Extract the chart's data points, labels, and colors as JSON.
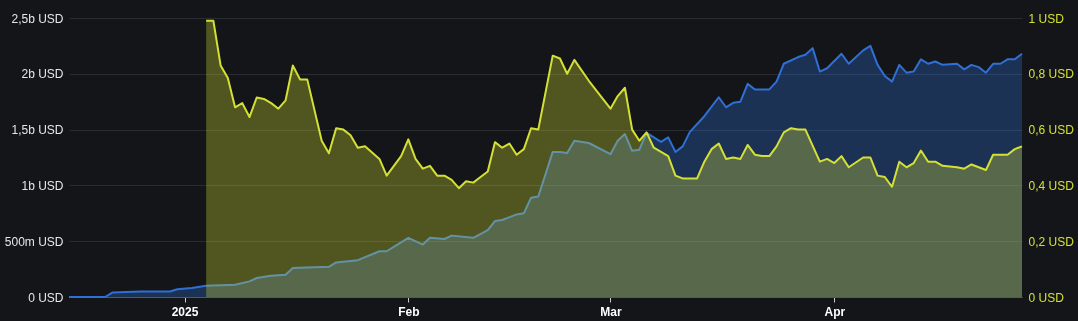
{
  "chart_data": {
    "type": "area",
    "xlim": [
      "2024-12-16",
      "2025-04-27"
    ],
    "xticks": [
      {
        "value": "2025-01-01",
        "label": "2025"
      },
      {
        "value": "2025-02-01",
        "label": "Feb"
      },
      {
        "value": "2025-03-01",
        "label": "Mar"
      },
      {
        "value": "2025-04-01",
        "label": "Apr"
      }
    ],
    "ylim": [
      0,
      2500000000
    ],
    "yticks": [
      {
        "value": 0,
        "label": "0 USD"
      },
      {
        "value": 500000000,
        "label": "500m USD"
      },
      {
        "value": 1000000000,
        "label": "1b USD"
      },
      {
        "value": 1500000000,
        "label": "1,5b USD"
      },
      {
        "value": 2000000000,
        "label": "2b USD"
      },
      {
        "value": 2500000000,
        "label": "2,5b USD"
      }
    ],
    "y2lim": [
      0,
      1
    ],
    "y2ticks": [
      {
        "value": 0,
        "label": "0 USD"
      },
      {
        "value": 0.2,
        "label": "0,2 USD"
      },
      {
        "value": 0.4,
        "label": "0,4 USD"
      },
      {
        "value": 0.6,
        "label": "0,6 USD"
      },
      {
        "value": 0.8,
        "label": "0,8 USD"
      },
      {
        "value": 1,
        "label": "1 USD"
      }
    ],
    "grid": "y",
    "series": [
      {
        "color": "#2f6fd6",
        "x": [
          "2024-12-16",
          "2024-12-21",
          "2024-12-22",
          "2024-12-26",
          "2024-12-30",
          "2024-12-31",
          "2025-01-02",
          "2025-01-04",
          "2025-01-08",
          "2025-01-10",
          "2025-01-11",
          "2025-01-13",
          "2025-01-15",
          "2025-01-16",
          "2025-01-21",
          "2025-01-22",
          "2025-01-25",
          "2025-01-28",
          "2025-01-29",
          "2025-02-01",
          "2025-02-03",
          "2025-02-04",
          "2025-02-06",
          "2025-02-07",
          "2025-02-10",
          "2025-02-12",
          "2025-02-13",
          "2025-02-14",
          "2025-02-16",
          "2025-02-17",
          "2025-02-18",
          "2025-02-19",
          "2025-02-20",
          "2025-02-21",
          "2025-02-22",
          "2025-02-23",
          "2025-02-24",
          "2025-02-26",
          "2025-03-01",
          "2025-03-02",
          "2025-03-03",
          "2025-03-04",
          "2025-03-05",
          "2025-03-06",
          "2025-03-08",
          "2025-03-09",
          "2025-03-10",
          "2025-03-11",
          "2025-03-12",
          "2025-03-14",
          "2025-03-16",
          "2025-03-17",
          "2025-03-18",
          "2025-03-19",
          "2025-03-20",
          "2025-03-21",
          "2025-03-23",
          "2025-03-24",
          "2025-03-25",
          "2025-03-27",
          "2025-03-28",
          "2025-03-29",
          "2025-03-30",
          "2025-03-31",
          "2025-04-02",
          "2025-04-03",
          "2025-04-05",
          "2025-04-06",
          "2025-04-07",
          "2025-04-08",
          "2025-04-09",
          "2025-04-10",
          "2025-04-11",
          "2025-04-12",
          "2025-04-13",
          "2025-04-14",
          "2025-04-15",
          "2025-04-16",
          "2025-04-18",
          "2025-04-19",
          "2025-04-20",
          "2025-04-21",
          "2025-04-22",
          "2025-04-23",
          "2025-04-24",
          "2025-04-25",
          "2025-04-26",
          "2025-04-27"
        ],
        "values": [
          0,
          0,
          40000000,
          50000000,
          50000000,
          70000000,
          80000000,
          100000000,
          110000000,
          140000000,
          170000000,
          190000000,
          200000000,
          260000000,
          270000000,
          310000000,
          330000000,
          410000000,
          410000000,
          530000000,
          470000000,
          530000000,
          520000000,
          550000000,
          530000000,
          600000000,
          680000000,
          690000000,
          740000000,
          750000000,
          890000000,
          900000000,
          1100000000,
          1300000000,
          1300000000,
          1290000000,
          1400000000,
          1380000000,
          1280000000,
          1400000000,
          1460000000,
          1310000000,
          1320000000,
          1470000000,
          1390000000,
          1430000000,
          1300000000,
          1350000000,
          1480000000,
          1620000000,
          1790000000,
          1700000000,
          1740000000,
          1750000000,
          1910000000,
          1860000000,
          1860000000,
          1930000000,
          2090000000,
          2150000000,
          2170000000,
          2230000000,
          2020000000,
          2050000000,
          2180000000,
          2090000000,
          2210000000,
          2250000000,
          2080000000,
          1980000000,
          1930000000,
          2080000000,
          2010000000,
          2020000000,
          2130000000,
          2090000000,
          2110000000,
          2080000000,
          2090000000,
          2040000000,
          2080000000,
          2060000000,
          2010000000,
          2090000000,
          2090000000,
          2130000000,
          2130000000,
          2180000000
        ]
      },
      {
        "axis": "y2",
        "color": "#d4e035",
        "x": [
          "2025-01-04",
          "2025-01-05",
          "2025-01-06",
          "2025-01-07",
          "2025-01-08",
          "2025-01-09",
          "2025-01-10",
          "2025-01-11",
          "2025-01-12",
          "2025-01-13",
          "2025-01-14",
          "2025-01-15",
          "2025-01-16",
          "2025-01-17",
          "2025-01-18",
          "2025-01-20",
          "2025-01-21",
          "2025-01-22",
          "2025-01-23",
          "2025-01-24",
          "2025-01-25",
          "2025-01-26",
          "2025-01-28",
          "2025-01-29",
          "2025-01-31",
          "2025-02-01",
          "2025-02-02",
          "2025-02-03",
          "2025-02-04",
          "2025-02-05",
          "2025-02-06",
          "2025-02-07",
          "2025-02-08",
          "2025-02-09",
          "2025-02-10",
          "2025-02-11",
          "2025-02-12",
          "2025-02-13",
          "2025-02-14",
          "2025-02-15",
          "2025-02-16",
          "2025-02-17",
          "2025-02-18",
          "2025-02-19",
          "2025-02-21",
          "2025-02-22",
          "2025-02-23",
          "2025-02-24",
          "2025-02-26",
          "2025-03-01",
          "2025-03-02",
          "2025-03-03",
          "2025-03-04",
          "2025-03-05",
          "2025-03-06",
          "2025-03-07",
          "2025-03-09",
          "2025-03-10",
          "2025-03-11",
          "2025-03-13",
          "2025-03-14",
          "2025-03-15",
          "2025-03-16",
          "2025-03-17",
          "2025-03-18",
          "2025-03-19",
          "2025-03-20",
          "2025-03-21",
          "2025-03-22",
          "2025-03-23",
          "2025-03-24",
          "2025-03-25",
          "2025-03-26",
          "2025-03-27",
          "2025-03-28",
          "2025-03-30",
          "2025-03-31",
          "2025-04-01",
          "2025-04-02",
          "2025-04-03",
          "2025-04-05",
          "2025-04-06",
          "2025-04-07",
          "2025-04-08",
          "2025-04-09",
          "2025-04-10",
          "2025-04-11",
          "2025-04-12",
          "2025-04-13",
          "2025-04-14",
          "2025-04-15",
          "2025-04-16",
          "2025-04-18",
          "2025-04-19",
          "2025-04-20",
          "2025-04-21",
          "2025-04-22",
          "2025-04-23",
          "2025-04-25",
          "2025-04-26",
          "2025-04-27"
        ],
        "values": [
          0.99,
          0.99,
          0.83,
          0.785,
          0.68,
          0.695,
          0.645,
          0.715,
          0.71,
          0.695,
          0.675,
          0.705,
          0.83,
          0.78,
          0.78,
          0.56,
          0.515,
          0.605,
          0.6,
          0.58,
          0.535,
          0.54,
          0.495,
          0.435,
          0.505,
          0.565,
          0.495,
          0.46,
          0.47,
          0.435,
          0.435,
          0.42,
          0.39,
          0.415,
          0.41,
          0.43,
          0.45,
          0.555,
          0.535,
          0.55,
          0.51,
          0.53,
          0.605,
          0.6,
          0.865,
          0.855,
          0.8,
          0.85,
          0.775,
          0.675,
          0.72,
          0.75,
          0.6,
          0.56,
          0.59,
          0.535,
          0.505,
          0.435,
          0.425,
          0.425,
          0.485,
          0.53,
          0.55,
          0.495,
          0.5,
          0.495,
          0.545,
          0.51,
          0.505,
          0.505,
          0.54,
          0.59,
          0.605,
          0.6,
          0.6,
          0.485,
          0.495,
          0.48,
          0.505,
          0.465,
          0.5,
          0.5,
          0.435,
          0.43,
          0.395,
          0.485,
          0.465,
          0.48,
          0.525,
          0.485,
          0.485,
          0.47,
          0.465,
          0.46,
          0.475,
          0.465,
          0.455,
          0.51,
          0.51,
          0.53,
          0.54
        ]
      }
    ]
  }
}
